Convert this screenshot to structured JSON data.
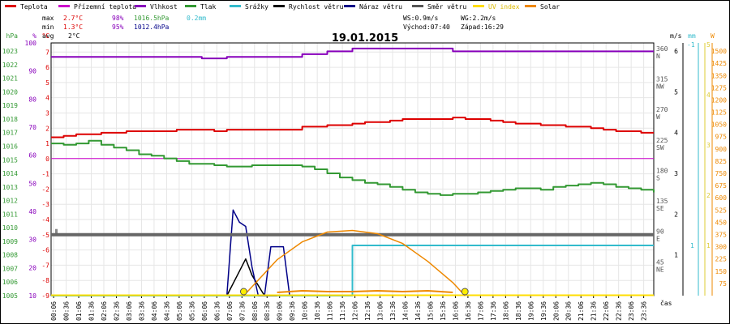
{
  "chart_data": {
    "type": "line",
    "title": "19.01.2015",
    "legend": [
      {
        "key": "teplota",
        "label": "Teplota",
        "color": "#dd0000"
      },
      {
        "key": "prizemni",
        "label": "Přízemní teplota",
        "color": "#cc00cc"
      },
      {
        "key": "vlhkost",
        "label": "Vlhkost",
        "color": "#8800bb"
      },
      {
        "key": "tlak",
        "label": "Tlak",
        "color": "#339933"
      },
      {
        "key": "srazky",
        "label": "Srážky",
        "color": "#33bbcc"
      },
      {
        "key": "rychlost",
        "label": "Rychlost větru",
        "color": "#000000"
      },
      {
        "key": "naraz",
        "label": "Náraz větru",
        "color": "#000088"
      },
      {
        "key": "smer",
        "label": "Směr větru",
        "color": "#555555"
      },
      {
        "key": "uv",
        "label": "UV index",
        "color": "#ffdd00"
      },
      {
        "key": "solar",
        "label": "Solar",
        "color": "#ee8800"
      }
    ],
    "stats": {
      "max": {
        "label": "max",
        "temp": "2.7°C",
        "hum": "98%",
        "press": "1016.5hPa",
        "rain": "0.2mm"
      },
      "min": {
        "label": "min",
        "temp": "1.3°C",
        "hum": "95%",
        "press": "1012.4hPa"
      },
      "avg": {
        "label": "avg",
        "temp": "2°C"
      }
    },
    "info": {
      "ws": "WS:0.9m/s",
      "wg": "WG:2.2m/s",
      "sunrise": "Východ:07:40",
      "sunset": "Západ:16:29"
    },
    "axes": {
      "hpa": {
        "unit": "hPa",
        "ticks": [
          1005,
          1006,
          1007,
          1008,
          1009,
          1010,
          1011,
          1012,
          1013,
          1014,
          1015,
          1016,
          1017,
          1018,
          1019,
          1020,
          1021,
          1022,
          1023
        ],
        "range": [
          1005,
          1023.6
        ]
      },
      "pct": {
        "unit": "%",
        "ticks": [
          10,
          20,
          30,
          40,
          50,
          60,
          70,
          80,
          90,
          100
        ],
        "range": [
          10,
          100
        ]
      },
      "temp": {
        "unit": "°C",
        "ticks": [
          -9,
          -8,
          -7,
          -6,
          -5,
          -4,
          -3,
          -2,
          -1,
          0,
          1,
          2,
          3,
          4,
          5,
          6,
          7
        ],
        "range": [
          -9,
          7.6
        ]
      },
      "dir": {
        "ticks": [
          {
            "v": 45,
            "l": "45 NE"
          },
          {
            "v": 90,
            "l": "90 E"
          },
          {
            "v": 135,
            "l": "135 SE"
          },
          {
            "v": 180,
            "l": "180 S"
          },
          {
            "v": 225,
            "l": "225 SW"
          },
          {
            "v": 270,
            "l": "270 W"
          },
          {
            "v": 315,
            "l": "315 NW"
          },
          {
            "v": 360,
            "l": "360 N"
          }
        ],
        "range": [
          0,
          373
        ]
      },
      "ms": {
        "unit": "m/s",
        "ticks": [
          1,
          2,
          3,
          4,
          5,
          6
        ],
        "range": [
          0,
          6.2
        ]
      },
      "mm": {
        "unit": "mm",
        "ticks": [
          "-1",
          "1"
        ]
      },
      "w": {
        "unit": "W",
        "ticks": [
          75,
          150,
          225,
          300,
          375,
          450,
          525,
          600,
          675,
          750,
          825,
          900,
          975,
          1050,
          1125,
          1200,
          1275,
          1350,
          1425,
          1500
        ],
        "range": [
          0,
          1550
        ]
      },
      "time": {
        "ticks": [
          "00:06",
          "00:36",
          "01:06",
          "01:36",
          "02:06",
          "02:36",
          "03:06",
          "03:36",
          "04:06",
          "04:36",
          "05:06",
          "05:36",
          "06:06",
          "06:36",
          "07:06",
          "07:36",
          "08:06",
          "08:36",
          "09:06",
          "09:36",
          "10:06",
          "10:36",
          "11:06",
          "11:36",
          "12:06",
          "12:36",
          "13:06",
          "13:36",
          "14:06",
          "14:36",
          "15:06",
          "15:36",
          "16:06",
          "16:36",
          "17:06",
          "17:36",
          "18:06",
          "18:36",
          "19:06",
          "19:36",
          "20:06",
          "20:36",
          "21:06",
          "21:36",
          "22:06",
          "22:36",
          "23:06",
          "23:36"
        ],
        "label": "čas"
      }
    },
    "series": [
      {
        "name": "Teplota",
        "axis": "temp",
        "x": [
          0,
          0.5,
          1,
          1.5,
          2,
          2.5,
          3,
          3.5,
          4,
          4.5,
          5,
          5.5,
          6,
          6.5,
          7,
          7.5,
          8,
          8.5,
          9,
          9.5,
          10,
          10.5,
          11,
          11.5,
          12,
          12.5,
          13,
          13.5,
          14,
          14.5,
          15,
          15.5,
          16,
          16.5,
          17,
          17.5,
          18,
          18.5,
          19,
          19.5,
          20,
          20.5,
          21,
          21.5,
          22,
          22.5,
          23,
          23.5,
          24
        ],
        "y": [
          1.4,
          1.5,
          1.6,
          1.6,
          1.7,
          1.7,
          1.8,
          1.8,
          1.8,
          1.8,
          1.9,
          1.9,
          1.9,
          1.8,
          1.9,
          1.9,
          1.9,
          1.9,
          1.9,
          1.9,
          2.1,
          2.1,
          2.2,
          2.2,
          2.3,
          2.4,
          2.4,
          2.5,
          2.6,
          2.6,
          2.6,
          2.6,
          2.7,
          2.6,
          2.6,
          2.5,
          2.4,
          2.3,
          2.3,
          2.2,
          2.2,
          2.1,
          2.1,
          2,
          1.9,
          1.8,
          1.8,
          1.7,
          1.7
        ]
      },
      {
        "name": "Přízemní teplota",
        "axis": "temp",
        "x": [
          0,
          24
        ],
        "y": [
          0,
          0
        ]
      },
      {
        "name": "Vlhkost",
        "axis": "pct",
        "x": [
          0,
          1,
          2,
          3,
          4,
          5,
          6,
          7,
          8,
          9,
          10,
          11,
          12,
          13,
          14,
          15,
          16,
          17,
          18,
          19,
          20,
          21,
          22,
          23,
          24
        ],
        "y": [
          95,
          95,
          95,
          95,
          95,
          95,
          94.5,
          95,
          95,
          95,
          96,
          97,
          98,
          98,
          98,
          98,
          97,
          97,
          97,
          97,
          97,
          97,
          97,
          97,
          97
        ]
      },
      {
        "name": "Tlak",
        "axis": "hpa",
        "x": [
          0,
          0.5,
          1,
          1.5,
          2,
          2.5,
          3,
          3.5,
          4,
          4.5,
          5,
          5.5,
          6,
          6.5,
          7,
          7.5,
          8,
          8.5,
          9,
          9.5,
          10,
          10.5,
          11,
          11.5,
          12,
          12.5,
          13,
          13.5,
          14,
          14.5,
          15,
          15.5,
          16,
          16.5,
          17,
          17.5,
          18,
          18.5,
          19,
          19.5,
          20,
          20.5,
          21,
          21.5,
          22,
          22.5,
          23,
          23.5,
          24
        ],
        "y": [
          1016.2,
          1016.1,
          1016.2,
          1016.4,
          1016.1,
          1015.9,
          1015.7,
          1015.4,
          1015.3,
          1015.1,
          1014.9,
          1014.7,
          1014.7,
          1014.6,
          1014.5,
          1014.5,
          1014.6,
          1014.6,
          1014.6,
          1014.6,
          1014.5,
          1014.3,
          1014.0,
          1013.7,
          1013.5,
          1013.3,
          1013.2,
          1013.0,
          1012.8,
          1012.6,
          1012.5,
          1012.4,
          1012.5,
          1012.5,
          1012.6,
          1012.7,
          1012.8,
          1012.9,
          1012.9,
          1012.8,
          1013.0,
          1013.1,
          1013.2,
          1013.3,
          1013.2,
          1013.0,
          1012.9,
          1012.8,
          1012.6
        ]
      },
      {
        "name": "Srážky",
        "axis": "mm",
        "x": [
          0,
          12,
          12,
          24
        ],
        "y": [
          0,
          0,
          0.2,
          0.2
        ]
      },
      {
        "name": "Rychlost větru",
        "axis": "ms",
        "x": [
          7,
          7.5,
          7.75,
          8,
          8.5,
          9
        ],
        "y": [
          0,
          0.6,
          0.9,
          0.5,
          0,
          0
        ]
      },
      {
        "name": "Náraz větru",
        "axis": "ms",
        "x": [
          7,
          7.25,
          7.5,
          7.75,
          8,
          8.25,
          8.5,
          8.75,
          9.25,
          9.5
        ],
        "y": [
          0,
          2.1,
          1.8,
          1.7,
          0.7,
          0,
          0,
          1.2,
          1.2,
          0
        ]
      },
      {
        "name": "Směr větru",
        "axis": "dir",
        "x": [
          0,
          24
        ],
        "y": [
          90,
          90
        ]
      },
      {
        "name": "UV index",
        "axis": "w",
        "x": [
          0,
          24
        ],
        "y": [
          0,
          0
        ]
      },
      {
        "name": "Solar",
        "axis": "w",
        "x": [
          7.67,
          9,
          10,
          11,
          12,
          13,
          14,
          15,
          16,
          16.48
        ],
        "y": [
          0,
          220,
          330,
          390,
          400,
          380,
          320,
          210,
          80,
          0
        ]
      },
      {
        "name": "Solar measured",
        "axis": "w",
        "x": [
          9,
          10,
          11,
          12,
          13,
          14,
          15,
          16
        ],
        "y": [
          20,
          30,
          25,
          25,
          30,
          25,
          30,
          20
        ]
      }
    ],
    "markers": [
      {
        "name": "sunrise-marker",
        "x": 7.67
      },
      {
        "name": "sunset-marker",
        "x": 16.48
      }
    ]
  }
}
